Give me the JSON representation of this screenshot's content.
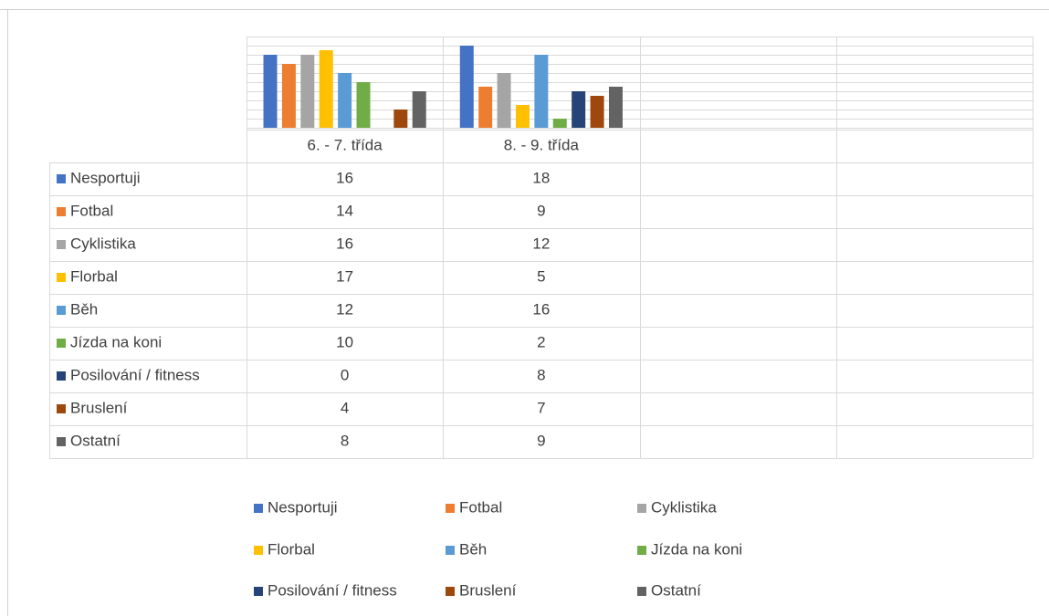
{
  "chart_data": {
    "type": "bar",
    "categories": [
      "6. - 7. třída",
      "8. - 9. třída",
      null,
      null
    ],
    "series": [
      {
        "name": "Nesportuji",
        "color": "#4472c4",
        "values": [
          16,
          18,
          null,
          null
        ]
      },
      {
        "name": "Fotbal",
        "color": "#ed7d31",
        "values": [
          14,
          9,
          null,
          null
        ]
      },
      {
        "name": "Cyklistika",
        "color": "#a5a5a5",
        "values": [
          16,
          12,
          null,
          null
        ]
      },
      {
        "name": "Florbal",
        "color": "#ffc000",
        "values": [
          17,
          5,
          null,
          null
        ]
      },
      {
        "name": "Běh",
        "color": "#5b9bd5",
        "values": [
          12,
          16,
          null,
          null
        ]
      },
      {
        "name": "Jízda na koni",
        "color": "#70ad47",
        "values": [
          10,
          2,
          null,
          null
        ]
      },
      {
        "name": "Posilování / fitness",
        "color": "#264478",
        "values": [
          0,
          8,
          null,
          null
        ]
      },
      {
        "name": "Bruslení",
        "color": "#9e480e",
        "values": [
          4,
          7,
          null,
          null
        ]
      },
      {
        "name": "Ostatní",
        "color": "#636363",
        "values": [
          8,
          9,
          null,
          null
        ]
      }
    ],
    "ylim": [
      0,
      20
    ],
    "yticks": [
      0,
      2,
      4,
      6,
      8,
      10,
      12,
      14,
      16,
      18,
      20
    ],
    "grid": true,
    "data_table": true,
    "legend": "bottom"
  }
}
